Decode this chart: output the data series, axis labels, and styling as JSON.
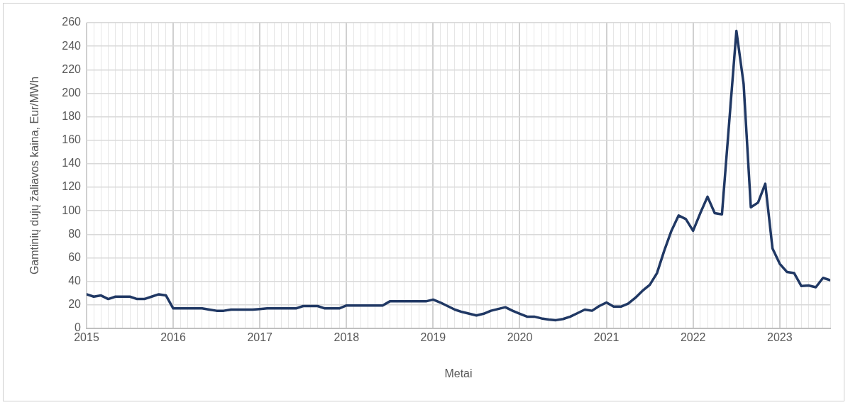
{
  "chart_data": {
    "type": "line",
    "xlabel": "Metai",
    "ylabel": "Gamtinių dujų žaliavos kaina, Eur/MWh",
    "x": [
      "2015-01",
      "2015-02",
      "2015-03",
      "2015-04",
      "2015-05",
      "2015-06",
      "2015-07",
      "2015-08",
      "2015-09",
      "2015-10",
      "2015-11",
      "2015-12",
      "2016-01",
      "2016-02",
      "2016-03",
      "2016-04",
      "2016-05",
      "2016-06",
      "2016-07",
      "2016-08",
      "2016-09",
      "2016-10",
      "2016-11",
      "2016-12",
      "2017-01",
      "2017-02",
      "2017-03",
      "2017-04",
      "2017-05",
      "2017-06",
      "2017-07",
      "2017-08",
      "2017-09",
      "2017-10",
      "2017-11",
      "2017-12",
      "2018-01",
      "2018-02",
      "2018-03",
      "2018-04",
      "2018-05",
      "2018-06",
      "2018-07",
      "2018-08",
      "2018-09",
      "2018-10",
      "2018-11",
      "2018-12",
      "2019-01",
      "2019-02",
      "2019-03",
      "2019-04",
      "2019-05",
      "2019-06",
      "2019-07",
      "2019-08",
      "2019-09",
      "2019-10",
      "2019-11",
      "2019-12",
      "2020-01",
      "2020-02",
      "2020-03",
      "2020-04",
      "2020-05",
      "2020-06",
      "2020-07",
      "2020-08",
      "2020-09",
      "2020-10",
      "2020-11",
      "2020-12",
      "2021-01",
      "2021-02",
      "2021-03",
      "2021-04",
      "2021-05",
      "2021-06",
      "2021-07",
      "2021-08",
      "2021-09",
      "2021-10",
      "2021-11",
      "2021-12",
      "2022-01",
      "2022-02",
      "2022-03",
      "2022-04",
      "2022-05",
      "2022-06",
      "2022-07",
      "2022-08",
      "2022-09",
      "2022-10",
      "2022-11",
      "2022-12",
      "2023-01",
      "2023-02",
      "2023-03",
      "2023-04",
      "2023-05",
      "2023-06",
      "2023-07",
      "2023-08"
    ],
    "series": [
      {
        "color": "#203864",
        "values": [
          29,
          27,
          28,
          25,
          27,
          27,
          27,
          25,
          25,
          27,
          29,
          28,
          17,
          17,
          17,
          17,
          17,
          16,
          15,
          15,
          16,
          16,
          16,
          16,
          16.5,
          17,
          17,
          17,
          17,
          17,
          19,
          19,
          19,
          17,
          17,
          17,
          19.5,
          19.5,
          19.5,
          19.5,
          19.5,
          19.5,
          23,
          23,
          23,
          23,
          23,
          23,
          24.5,
          22,
          19,
          16,
          14,
          12.5,
          11,
          12.5,
          15,
          16.5,
          18,
          15,
          12.5,
          10,
          10,
          8.5,
          7.5,
          7,
          8,
          10,
          13,
          16,
          15,
          19,
          22,
          18.5,
          18.5,
          21,
          26,
          32,
          37,
          47,
          66,
          83,
          96,
          93,
          83,
          98,
          112,
          98,
          97,
          175,
          253,
          208,
          103,
          107,
          123,
          68,
          55,
          48,
          47,
          36,
          36.5,
          35,
          43,
          41
        ]
      }
    ],
    "xlim": [
      "2015-01",
      "2023-08"
    ],
    "xticks": [
      "2015",
      {
        "value": "2015-02",
        "label": null
      },
      {
        "value": "2015-03",
        "label": null
      },
      {
        "value": "2015-04",
        "label": null
      },
      {
        "value": "2015-05",
        "label": null
      },
      {
        "value": "2015-06",
        "label": null
      },
      {
        "value": "2015-07",
        "label": null
      },
      {
        "value": "2015-08",
        "label": null
      },
      {
        "value": "2015-09",
        "label": null
      },
      {
        "value": "2015-10",
        "label": null
      },
      {
        "value": "2015-11",
        "label": null
      },
      {
        "value": "2015-12",
        "label": null
      },
      "2016",
      {
        "value": "2016-02",
        "label": null
      },
      {
        "value": "2016-03",
        "label": null
      },
      {
        "value": "2016-04",
        "label": null
      },
      {
        "value": "2016-05",
        "label": null
      },
      {
        "value": "2016-06",
        "label": null
      },
      {
        "value": "2016-07",
        "label": null
      },
      {
        "value": "2016-08",
        "label": null
      },
      {
        "value": "2016-09",
        "label": null
      },
      {
        "value": "2016-10",
        "label": null
      },
      {
        "value": "2016-11",
        "label": null
      },
      {
        "value": "2016-12",
        "label": null
      },
      "2017",
      {
        "value": "2017-02",
        "label": null
      },
      {
        "value": "2017-03",
        "label": null
      },
      {
        "value": "2017-04",
        "label": null
      },
      {
        "value": "2017-05",
        "label": null
      },
      {
        "value": "2017-06",
        "label": null
      },
      {
        "value": "2017-07",
        "label": null
      },
      {
        "value": "2017-08",
        "label": null
      },
      {
        "value": "2017-09",
        "label": null
      },
      {
        "value": "2017-10",
        "label": null
      },
      {
        "value": "2017-11",
        "label": null
      },
      {
        "value": "2017-12",
        "label": null
      },
      "2018",
      {
        "value": "2018-02",
        "label": null
      },
      {
        "value": "2018-03",
        "label": null
      },
      {
        "value": "2018-04",
        "label": null
      },
      {
        "value": "2018-05",
        "label": null
      },
      {
        "value": "2018-06",
        "label": null
      },
      {
        "value": "2018-07",
        "label": null
      },
      {
        "value": "2018-08",
        "label": null
      },
      {
        "value": "2018-09",
        "label": null
      },
      {
        "value": "2018-10",
        "label": null
      },
      {
        "value": "2018-11",
        "label": null
      },
      {
        "value": "2018-12",
        "label": null
      },
      "2019",
      {
        "value": "2019-02",
        "label": null
      },
      {
        "value": "2019-03",
        "label": null
      },
      {
        "value": "2019-04",
        "label": null
      },
      {
        "value": "2019-05",
        "label": null
      },
      {
        "value": "2019-06",
        "label": null
      },
      {
        "value": "2019-07",
        "label": null
      },
      {
        "value": "2019-08",
        "label": null
      },
      {
        "value": "2019-09",
        "label": null
      },
      {
        "value": "2019-10",
        "label": null
      },
      {
        "value": "2019-11",
        "label": null
      },
      {
        "value": "2019-12",
        "label": null
      },
      "2020",
      {
        "value": "2020-02",
        "label": null
      },
      {
        "value": "2020-03",
        "label": null
      },
      {
        "value": "2020-04",
        "label": null
      },
      {
        "value": "2020-05",
        "label": null
      },
      {
        "value": "2020-06",
        "label": null
      },
      {
        "value": "2020-07",
        "label": null
      },
      {
        "value": "2020-08",
        "label": null
      },
      {
        "value": "2020-09",
        "label": null
      },
      {
        "value": "2020-10",
        "label": null
      },
      {
        "value": "2020-11",
        "label": null
      },
      {
        "value": "2020-12",
        "label": null
      },
      "2021",
      {
        "value": "2021-02",
        "label": null
      },
      {
        "value": "2021-03",
        "label": null
      },
      {
        "value": "2021-04",
        "label": null
      },
      {
        "value": "2021-05",
        "label": null
      },
      {
        "value": "2021-06",
        "label": null
      },
      {
        "value": "2021-07",
        "label": null
      },
      {
        "value": "2021-08",
        "label": null
      },
      {
        "value": "2021-09",
        "label": null
      },
      {
        "value": "2021-10",
        "label": null
      },
      {
        "value": "2021-11",
        "label": null
      },
      {
        "value": "2021-12",
        "label": null
      },
      "2022",
      {
        "value": "2022-02",
        "label": null
      },
      {
        "value": "2022-03",
        "label": null
      },
      {
        "value": "2022-04",
        "label": null
      },
      {
        "value": "2022-05",
        "label": null
      },
      {
        "value": "2022-06",
        "label": null
      },
      {
        "value": "2022-07",
        "label": null
      },
      {
        "value": "2022-08",
        "label": null
      },
      {
        "value": "2022-09",
        "label": null
      },
      {
        "value": "2022-10",
        "label": null
      },
      {
        "value": "2022-11",
        "label": null
      },
      {
        "value": "2022-12",
        "label": null
      },
      "2023",
      {
        "value": "2023-02",
        "label": null
      },
      {
        "value": "2023-03",
        "label": null
      },
      {
        "value": "2023-04",
        "label": null
      },
      {
        "value": "2023-05",
        "label": null
      },
      {
        "value": "2023-06",
        "label": null
      },
      {
        "value": "2023-07",
        "label": null
      },
      {
        "value": "2023-08",
        "label": null
      }
    ],
    "ylim": [
      0,
      260
    ],
    "yticks": [
      0,
      20,
      40,
      60,
      80,
      100,
      120,
      140,
      160,
      180,
      200,
      220,
      240,
      260
    ],
    "grid": true,
    "legend": false,
    "marker": "none",
    "line_style": "solid"
  }
}
